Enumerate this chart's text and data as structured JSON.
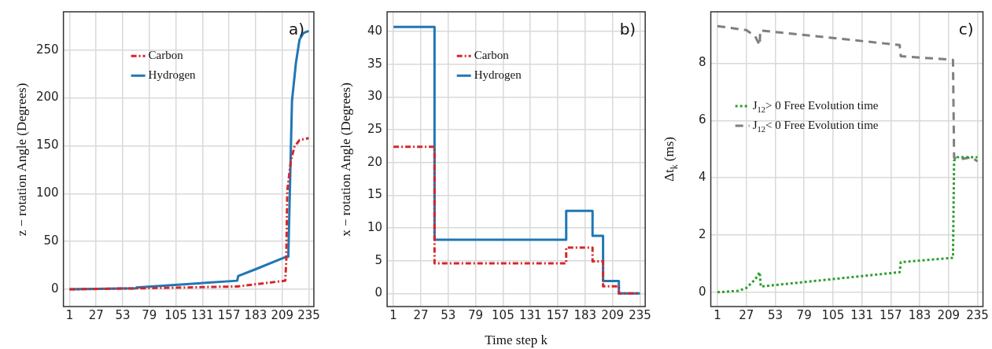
{
  "chart_data": [
    {
      "type": "line",
      "ylabel": "z − rotation Angle (Degrees)",
      "annotations": [
        "a)"
      ],
      "xlim": [
        -5,
        240
      ],
      "xticks": [
        1,
        27,
        53,
        79,
        105,
        131,
        157,
        183,
        209,
        235
      ],
      "ylim": [
        -18,
        290
      ],
      "yticks": [
        0,
        50,
        100,
        150,
        200,
        250
      ],
      "grid": true,
      "legend": "top",
      "marker": "none",
      "series": [
        {
          "name": "Carbon",
          "color": "#d62728",
          "line_style": "dashdot",
          "x": [
            1,
            66,
            165,
            212,
            213,
            214,
            217.6,
            221,
            226,
            235
          ],
          "values": [
            0,
            1,
            3,
            9,
            30,
            103,
            135,
            149,
            156,
            158
          ]
        },
        {
          "name": "Hydrogen",
          "color": "#1f77b4",
          "line_style": "solid",
          "x": [
            1,
            66,
            66.5,
            165,
            166,
            183,
            213,
            215,
            218.6,
            222.5,
            226,
            230,
            235
          ],
          "values": [
            0,
            1,
            2,
            9,
            14,
            21,
            34,
            34,
            197,
            237,
            261,
            268,
            270
          ]
        }
      ]
    },
    {
      "type": "step",
      "ylabel": "x − rotation Angle (Degrees)",
      "xlabel": "Time step k",
      "annotations": [
        "b)"
      ],
      "xlim": [
        -5,
        240
      ],
      "xticks": [
        1,
        27,
        53,
        79,
        105,
        131,
        157,
        183,
        209,
        235
      ],
      "ylim": [
        -2,
        43
      ],
      "yticks": [
        0,
        5,
        10,
        15,
        20,
        25,
        30,
        35,
        40
      ],
      "grid": true,
      "legend": "top",
      "marker": "none",
      "x": [
        1,
        40,
        165,
        190,
        200,
        215,
        235
      ],
      "series": [
        {
          "name": "Carbon",
          "color": "#d62728",
          "line_style": "dashdot",
          "values": [
            22.4,
            4.6,
            7.0,
            4.9,
            1.1,
            0,
            0
          ]
        },
        {
          "name": "Hydrogen",
          "color": "#1f77b4",
          "line_style": "solid",
          "values": [
            40.7,
            8.2,
            12.6,
            8.8,
            1.9,
            0,
            0
          ]
        }
      ]
    },
    {
      "type": "line",
      "ylabel": "Δt$_{k}$ (ms)",
      "annotations": [
        "c)"
      ],
      "xlim": [
        -5,
        240
      ],
      "xticks": [
        1,
        27,
        53,
        79,
        105,
        131,
        157,
        183,
        209,
        235
      ],
      "ylim": [
        -0.5,
        9.8
      ],
      "yticks": [
        0,
        2,
        4,
        6,
        8
      ],
      "grid": true,
      "legend": "left",
      "marker": "none",
      "series": [
        {
          "name": "J$_{12}$> 0 Free Evolution time",
          "color": "#2ca02c",
          "line_style": "dotted",
          "x": [
            1,
            20,
            27,
            35,
            39,
            40,
            165,
            166,
            213,
            214,
            217,
            235
          ],
          "values": [
            0,
            0.05,
            0.15,
            0.45,
            0.7,
            0.2,
            0.7,
            1.05,
            1.2,
            4.6,
            4.72,
            4.72
          ]
        },
        {
          "name": "J$_{12}$< 0 Free Evolution time",
          "color": "#7f7f7f",
          "line_style": "dashed",
          "x": [
            1,
            27,
            35,
            39,
            39.5,
            165,
            166,
            213,
            214,
            220,
            230,
            235
          ],
          "values": [
            9.3,
            9.16,
            8.94,
            8.63,
            9.15,
            8.64,
            8.25,
            8.12,
            4.7,
            4.65,
            4.72,
            4.57
          ]
        }
      ]
    }
  ]
}
